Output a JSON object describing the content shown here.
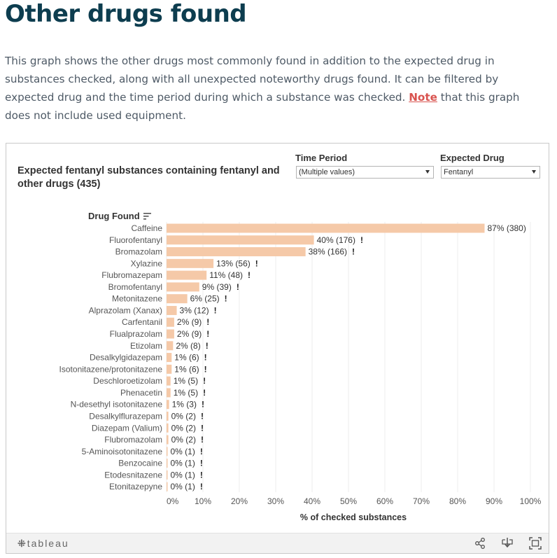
{
  "page": {
    "title": "Other drugs found",
    "intro_before": "This graph shows the other drugs most commonly found in addition to the expected drug in substances checked, along with all unexpected noteworthy drugs found. It can be filtered by expected drug and the time period during which a substance was checked. ",
    "intro_link": "Note",
    "intro_after": " that this graph does not include used equipment."
  },
  "viz": {
    "title": "Expected fentanyl substances containing fentanyl and other drugs (435)",
    "filters": {
      "time_period_label": "Time Period",
      "time_period_value": "(Multiple values)",
      "expected_drug_label": "Expected Drug",
      "expected_drug_value": "Fentanyl"
    },
    "row_header": "Drug Found",
    "toolbar": {
      "logo": "tableau"
    }
  },
  "colors": {
    "bar": "#f5c9a8",
    "title": "#0d3d4f",
    "link": "#d9534f"
  },
  "chart_data": {
    "type": "bar",
    "orientation": "horizontal",
    "title": "Expected fentanyl substances containing fentanyl and other drugs (435)",
    "xlabel": "% of checked substances",
    "ylabel": "Drug Found",
    "xlim": [
      0,
      100
    ],
    "xticks": [
      "0%",
      "10%",
      "20%",
      "30%",
      "40%",
      "50%",
      "60%",
      "70%",
      "80%",
      "90%",
      "100%"
    ],
    "categories": [
      "Caffeine",
      "Fluorofentanyl",
      "Bromazolam",
      "Xylazine",
      "Flubromazepam",
      "Bromofentanyl",
      "Metonitazene",
      "Alprazolam (Xanax)",
      "Carfentanil",
      "Flualprazolam",
      "Etizolam",
      "Desalkylgidazepam",
      "Isotonitazene/protonitazene",
      "Deschloroetizolam",
      "Phenacetin",
      "N-desethyl isotonitazene",
      "Desalkylflurazepam",
      "Diazepam (Valium)",
      "Flubromazolam",
      "5-Aminoisotonitazene",
      "Benzocaine",
      "Etodesnitazene",
      "Etonitazepyne"
    ],
    "values": [
      87.4,
      40.5,
      38.2,
      12.9,
      11.0,
      9.0,
      5.7,
      2.8,
      2.1,
      2.1,
      1.8,
      1.4,
      1.4,
      1.1,
      1.1,
      0.7,
      0.5,
      0.5,
      0.5,
      0.2,
      0.2,
      0.2,
      0.2
    ],
    "labels": [
      "87% (380)",
      "40% (176)",
      "38% (166)",
      "13% (56)",
      "11% (48)",
      "9% (39)",
      "6% (25)",
      "3% (12)",
      "2% (9)",
      "2% (9)",
      "2% (8)",
      "1% (6)",
      "1% (6)",
      "1% (5)",
      "1% (5)",
      "1% (3)",
      "0% (2)",
      "0% (2)",
      "0% (2)",
      "0% (1)",
      "0% (1)",
      "0% (1)",
      "0% (1)"
    ],
    "noteworthy": [
      false,
      true,
      true,
      true,
      true,
      true,
      true,
      true,
      true,
      true,
      true,
      true,
      true,
      true,
      true,
      true,
      true,
      true,
      true,
      true,
      true,
      true,
      true
    ],
    "noteworthy_marker": "!"
  }
}
